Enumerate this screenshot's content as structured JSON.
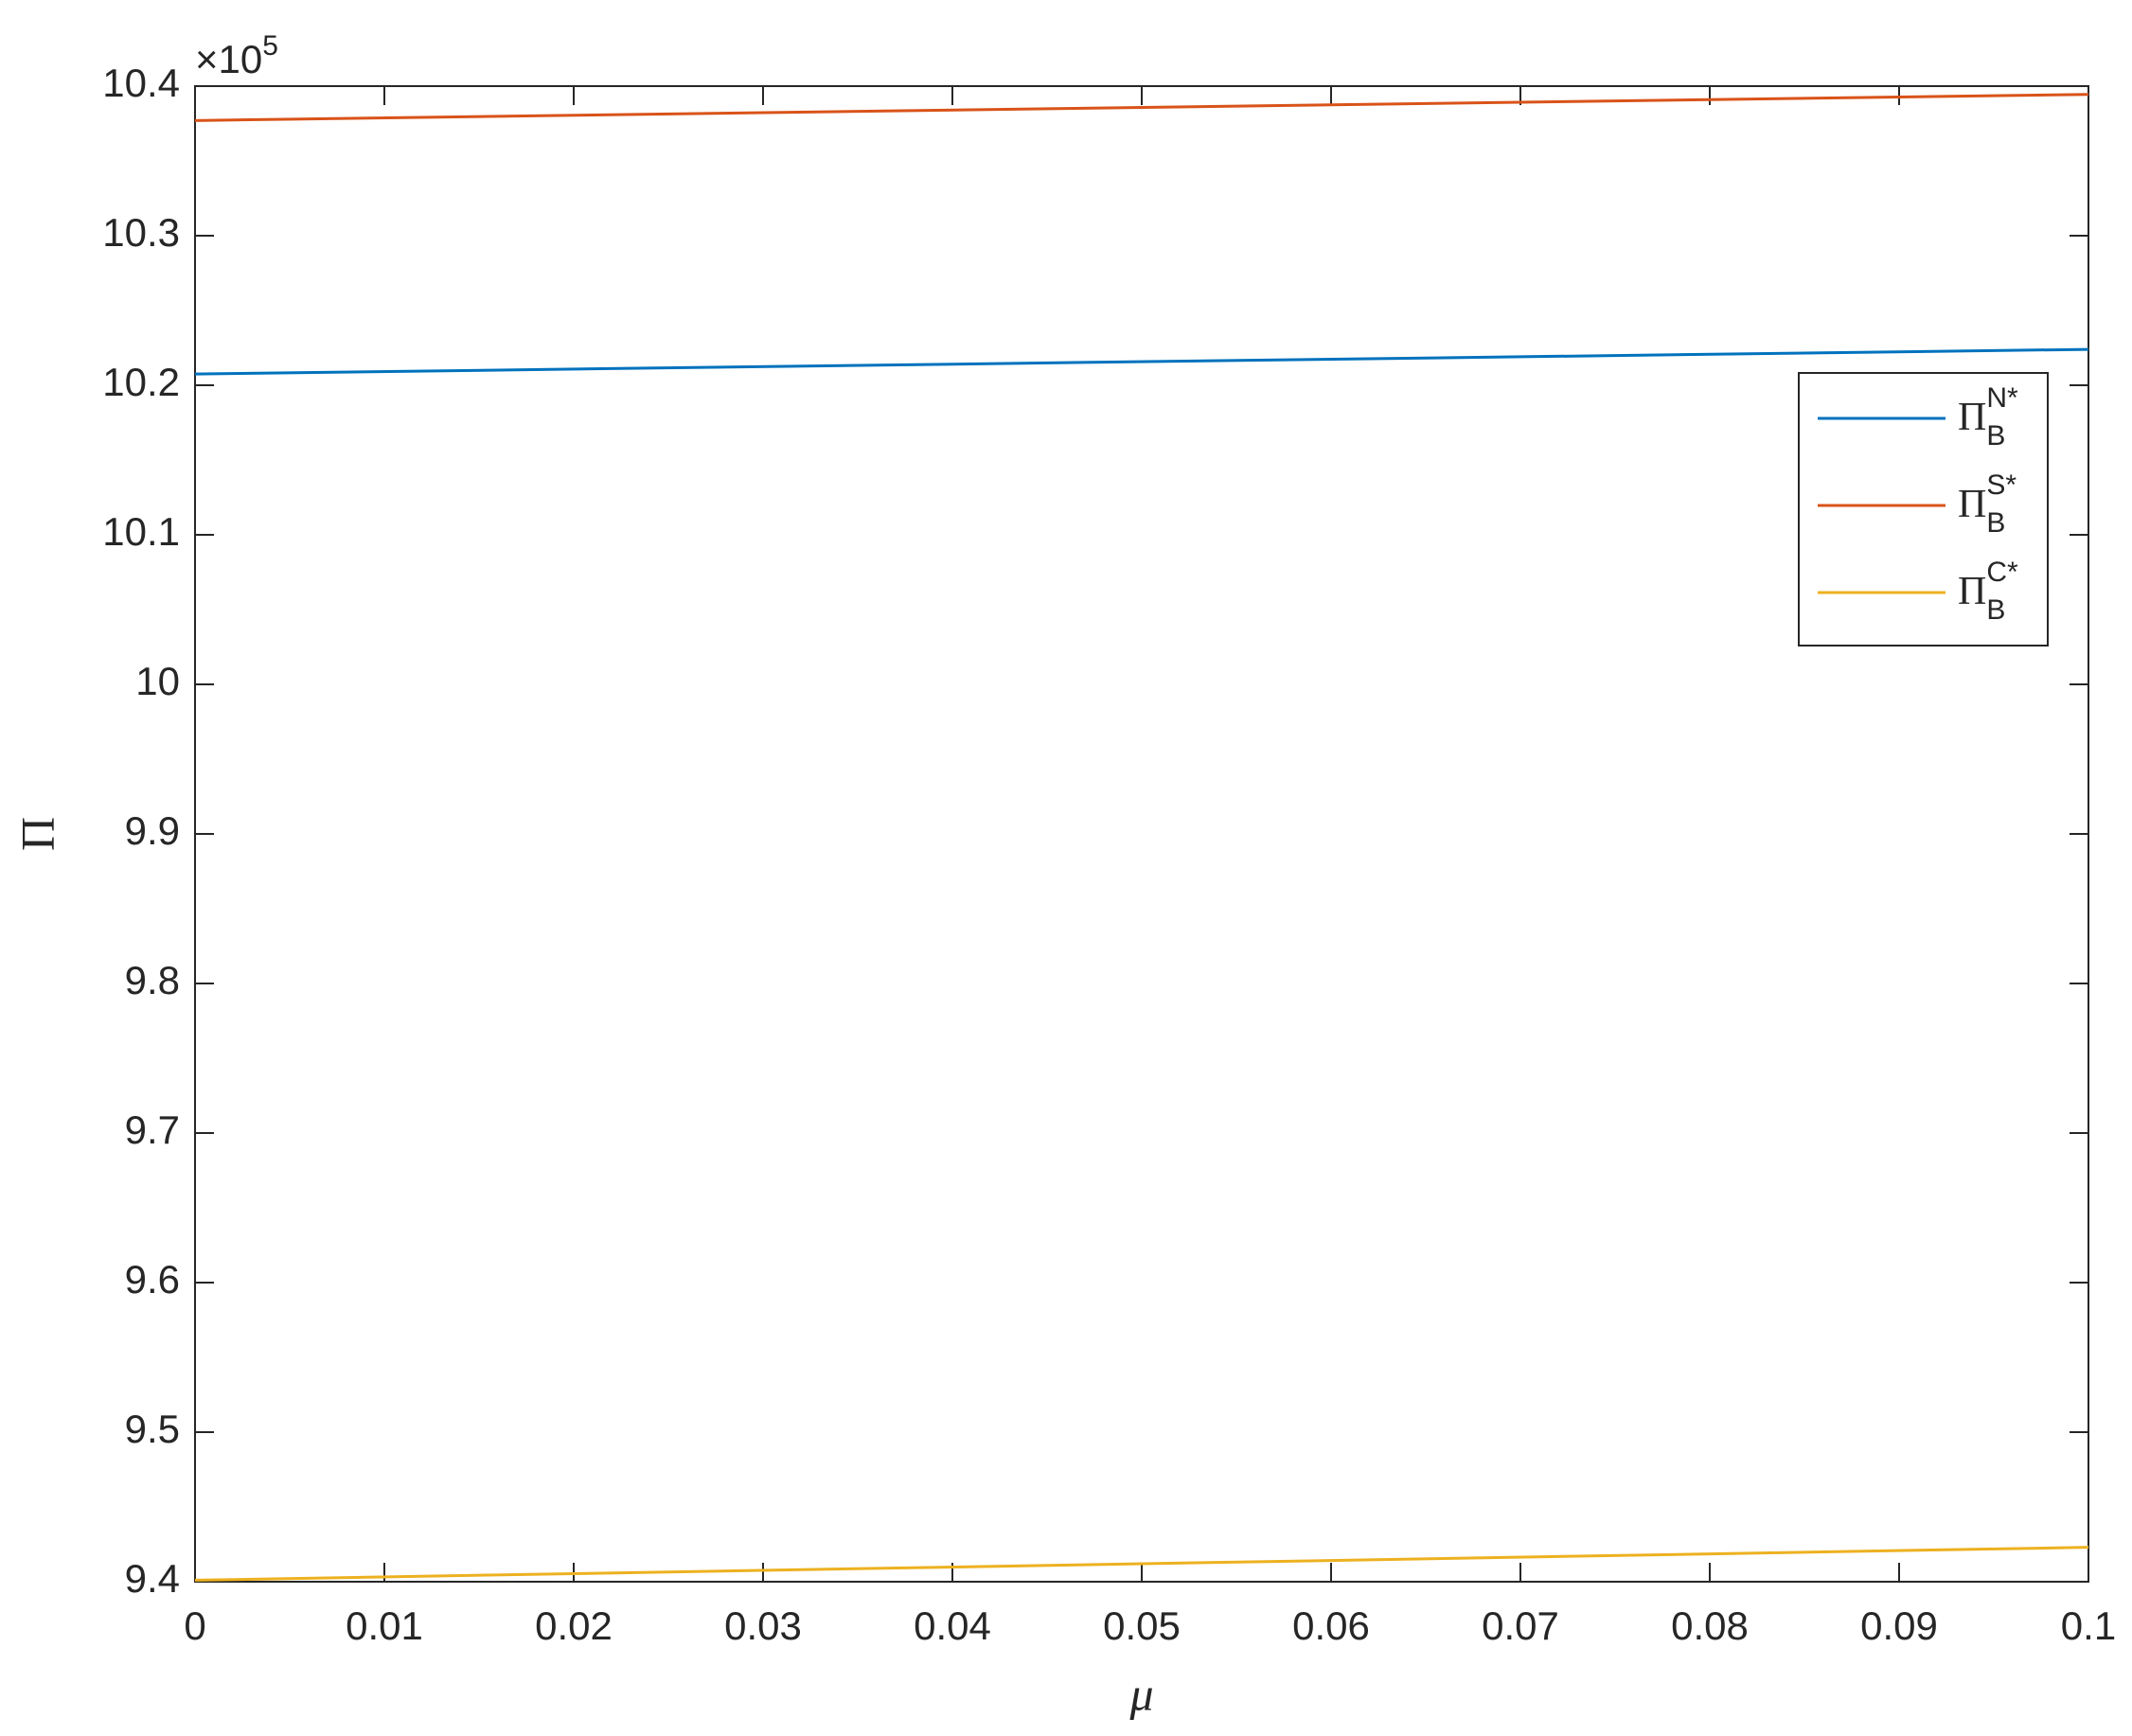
{
  "chart_data": {
    "type": "line",
    "x_label": "μ",
    "y_label": "Π",
    "y_exponent": {
      "base": "×10",
      "power": "5"
    },
    "x": [
      0,
      0.1
    ],
    "series": [
      {
        "name": "Π",
        "subscript": "B",
        "superscript": "N*",
        "color": "#0072bd",
        "values": [
          10.2075,
          10.224
        ]
      },
      {
        "name": "Π",
        "subscript": "B",
        "superscript": "S*",
        "color": "#d95319",
        "values": [
          10.377,
          10.3945
        ]
      },
      {
        "name": "Π",
        "subscript": "B",
        "superscript": "C*",
        "color": "#edb120",
        "values": [
          9.401,
          9.423
        ]
      }
    ],
    "xlim": [
      0,
      0.1
    ],
    "xticks": [
      0,
      0.01,
      0.02,
      0.03,
      0.04,
      0.05,
      0.06,
      0.07,
      0.08,
      0.09,
      0.1
    ],
    "ylim": [
      9.4,
      10.4
    ],
    "yticks": [
      9.4,
      9.5,
      9.6,
      9.7,
      9.8,
      9.9,
      10,
      10.1,
      10.2,
      10.3,
      10.4
    ],
    "grid": false,
    "legend_position": "right"
  }
}
